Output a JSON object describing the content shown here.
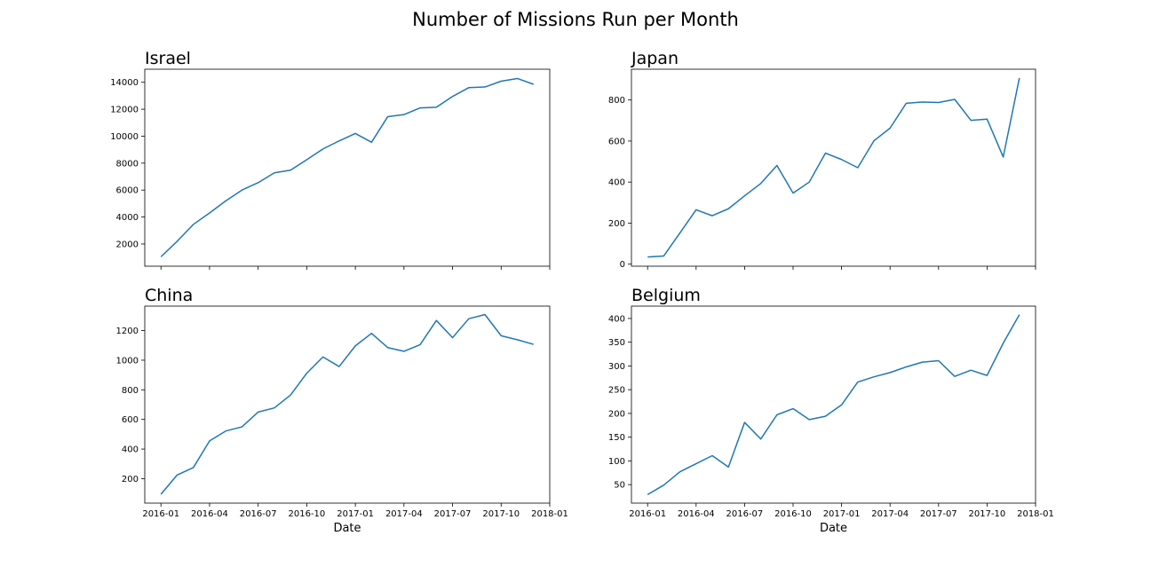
{
  "figure": {
    "title": "Number of Missions Run per Month"
  },
  "chart_data": [
    {
      "type": "line",
      "title": "Israel",
      "xlabel": "",
      "ylabel": "",
      "x": [
        "2016-01",
        "2016-02",
        "2016-03",
        "2016-04",
        "2016-05",
        "2016-06",
        "2016-07",
        "2016-08",
        "2016-09",
        "2016-10",
        "2016-11",
        "2016-12",
        "2017-01",
        "2017-02",
        "2017-03",
        "2017-04",
        "2017-05",
        "2017-06",
        "2017-07",
        "2017-08",
        "2017-09",
        "2017-10",
        "2017-11",
        "2017-12"
      ],
      "values": [
        1050,
        2200,
        3450,
        4300,
        5200,
        6000,
        6550,
        7280,
        7480,
        8250,
        9050,
        9650,
        10200,
        9550,
        11450,
        11600,
        12100,
        12150,
        12950,
        13600,
        13650,
        14080,
        14280,
        13850
      ],
      "xlim": [
        "2015-12",
        "2018-01"
      ],
      "ylim": [
        350,
        14970
      ],
      "xticks": [
        "2016-01",
        "2016-04",
        "2016-07",
        "2016-10",
        "2017-01",
        "2017-04",
        "2017-07",
        "2017-10",
        "2018-01"
      ],
      "show_xtick_labels": false,
      "yticks": [
        2000,
        4000,
        6000,
        8000,
        10000,
        12000,
        14000
      ],
      "ytick_labels": [
        "2000",
        "4000",
        "6000",
        "8000",
        "10000",
        "12000",
        "14000"
      ],
      "grid": false
    },
    {
      "type": "line",
      "title": "Japan",
      "xlabel": "",
      "ylabel": "",
      "x": [
        "2016-01",
        "2016-02",
        "2016-03",
        "2016-04",
        "2016-05",
        "2016-06",
        "2016-07",
        "2016-08",
        "2016-09",
        "2016-10",
        "2016-11",
        "2016-12",
        "2017-01",
        "2017-02",
        "2017-03",
        "2017-04",
        "2017-05",
        "2017-06",
        "2017-07",
        "2017-08",
        "2017-09",
        "2017-10",
        "2017-11",
        "2017-12"
      ],
      "values": [
        35,
        40,
        152,
        265,
        236,
        270,
        333,
        393,
        481,
        346,
        400,
        541,
        510,
        470,
        601,
        663,
        784,
        790,
        788,
        803,
        701,
        707,
        522,
        907
      ],
      "xlim": [
        "2015-12",
        "2018-01"
      ],
      "ylim": [
        -10,
        950
      ],
      "xticks": [
        "2016-01",
        "2016-04",
        "2016-07",
        "2016-10",
        "2017-01",
        "2017-04",
        "2017-07",
        "2017-10",
        "2018-01"
      ],
      "show_xtick_labels": false,
      "yticks": [
        0,
        200,
        400,
        600,
        800
      ],
      "ytick_labels": [
        "0",
        "200",
        "400",
        "600",
        "800"
      ],
      "grid": false
    },
    {
      "type": "line",
      "title": "China",
      "xlabel": "Date",
      "ylabel": "",
      "x": [
        "2016-01",
        "2016-02",
        "2016-03",
        "2016-04",
        "2016-05",
        "2016-06",
        "2016-07",
        "2016-08",
        "2016-09",
        "2016-10",
        "2016-11",
        "2016-12",
        "2017-01",
        "2017-02",
        "2017-03",
        "2017-04",
        "2017-05",
        "2017-06",
        "2017-07",
        "2017-08",
        "2017-09",
        "2017-10",
        "2017-11",
        "2017-12"
      ],
      "values": [
        95,
        225,
        275,
        455,
        522,
        550,
        650,
        678,
        765,
        912,
        1022,
        957,
        1097,
        1181,
        1085,
        1060,
        1105,
        1268,
        1152,
        1280,
        1308,
        1165,
        1138,
        1107
      ],
      "xlim": [
        "2015-12",
        "2018-01"
      ],
      "ylim": [
        35,
        1365
      ],
      "xticks": [
        "2016-01",
        "2016-04",
        "2016-07",
        "2016-10",
        "2017-01",
        "2017-04",
        "2017-07",
        "2017-10",
        "2018-01"
      ],
      "xtick_labels": [
        "2016-01",
        "2016-04",
        "2016-07",
        "2016-10",
        "2017-01",
        "2017-04",
        "2017-07",
        "2017-10",
        "2018-01"
      ],
      "show_xtick_labels": true,
      "yticks": [
        200,
        400,
        600,
        800,
        1000,
        1200
      ],
      "ytick_labels": [
        "200",
        "400",
        "600",
        "800",
        "1000",
        "1200"
      ],
      "grid": false
    },
    {
      "type": "line",
      "title": "Belgium",
      "xlabel": "Date",
      "ylabel": "",
      "x": [
        "2016-01",
        "2016-02",
        "2016-03",
        "2016-04",
        "2016-05",
        "2016-06",
        "2016-07",
        "2016-08",
        "2016-09",
        "2016-10",
        "2016-11",
        "2016-12",
        "2017-01",
        "2017-02",
        "2017-03",
        "2017-04",
        "2017-05",
        "2017-06",
        "2017-07",
        "2017-08",
        "2017-09",
        "2017-10",
        "2017-11",
        "2017-12"
      ],
      "values": [
        29,
        49,
        77,
        94,
        111,
        87,
        181,
        146,
        197,
        210,
        187,
        194,
        218,
        266,
        277,
        286,
        298,
        308,
        311,
        278,
        291,
        280,
        348,
        408
      ],
      "xlim": [
        "2015-12",
        "2018-01"
      ],
      "ylim": [
        11,
        426
      ],
      "xticks": [
        "2016-01",
        "2016-04",
        "2016-07",
        "2016-10",
        "2017-01",
        "2017-04",
        "2017-07",
        "2017-10",
        "2018-01"
      ],
      "xtick_labels": [
        "2016-01",
        "2016-04",
        "2016-07",
        "2016-10",
        "2017-01",
        "2017-04",
        "2017-07",
        "2017-10",
        "2018-01"
      ],
      "show_xtick_labels": true,
      "yticks": [
        50,
        100,
        150,
        200,
        250,
        300,
        350,
        400
      ],
      "ytick_labels": [
        "50",
        "100",
        "150",
        "200",
        "250",
        "300",
        "350",
        "400"
      ],
      "grid": false
    }
  ],
  "colors": {
    "line": "#1f77b4",
    "axes": "#000000",
    "background": "#ffffff"
  }
}
